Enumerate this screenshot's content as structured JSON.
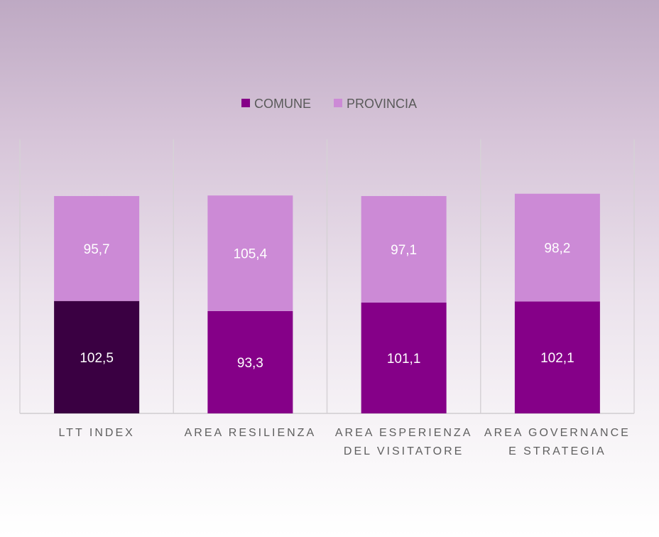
{
  "chart_data": {
    "type": "bar",
    "stacked": true,
    "title": "",
    "categories": [
      [
        "LTT INDEX"
      ],
      [
        "AREA RESILIENZA"
      ],
      [
        "AREA ESPERIENZA",
        "DEL VISITATORE"
      ],
      [
        "AREA GOVERNANCE",
        "E STRATEGIA"
      ]
    ],
    "series": [
      {
        "name": "COMUNE",
        "values": [
          102.5,
          93.3,
          101.1,
          102.1
        ],
        "labels": [
          "102,5",
          "93,3",
          "101,1",
          "102,1"
        ],
        "color": "#850088",
        "point_colors": [
          "#3a0042",
          "#850088",
          "#850088",
          "#850088"
        ]
      },
      {
        "name": "PROVINCIA",
        "values": [
          95.7,
          105.4,
          97.1,
          98.2
        ],
        "labels": [
          "95,7",
          "105,4",
          "97,1",
          "98,2"
        ],
        "color": "#cc8ad6"
      }
    ],
    "ylim": [
      0,
      250
    ],
    "grid": "vertical category separators",
    "legend": "top-center",
    "xlabel": "",
    "ylabel": ""
  }
}
